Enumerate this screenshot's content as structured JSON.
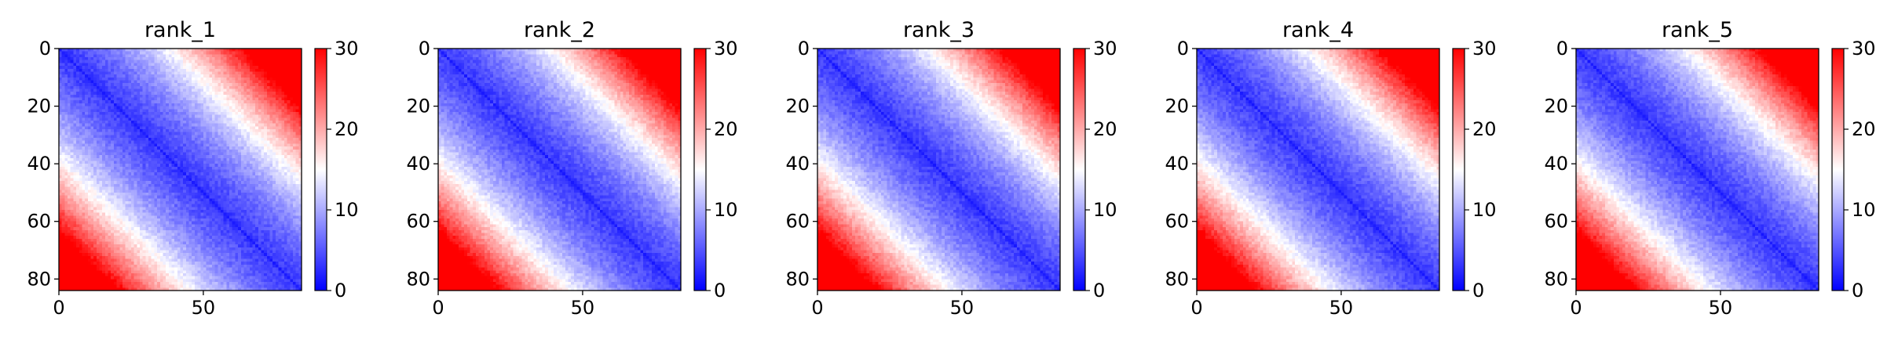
{
  "figure": {
    "colorbar_colors": {
      "low": "#0000ff",
      "mid": "#ffffff",
      "high": "#ff0000"
    }
  },
  "chart_data": [
    {
      "type": "heatmap",
      "title": "rank_1",
      "matrix_size": 84,
      "x_ticks": [
        0,
        50
      ],
      "y_ticks": [
        0,
        20,
        40,
        60,
        80
      ],
      "xlim": [
        0,
        84
      ],
      "ylim": [
        84,
        0
      ],
      "colorbar": {
        "ticks": [
          0,
          10,
          20,
          30
        ],
        "vmin": 0,
        "vmax": 30,
        "colormap": "bwr"
      }
    },
    {
      "type": "heatmap",
      "title": "rank_2",
      "matrix_size": 84,
      "x_ticks": [
        0,
        50
      ],
      "y_ticks": [
        0,
        20,
        40,
        60,
        80
      ],
      "xlim": [
        0,
        84
      ],
      "ylim": [
        84,
        0
      ],
      "colorbar": {
        "ticks": [
          0,
          10,
          20,
          30
        ],
        "vmin": 0,
        "vmax": 30,
        "colormap": "bwr"
      }
    },
    {
      "type": "heatmap",
      "title": "rank_3",
      "matrix_size": 84,
      "x_ticks": [
        0,
        50
      ],
      "y_ticks": [
        0,
        20,
        40,
        60,
        80
      ],
      "xlim": [
        0,
        84
      ],
      "ylim": [
        84,
        0
      ],
      "colorbar": {
        "ticks": [
          0,
          10,
          20,
          30
        ],
        "vmin": 0,
        "vmax": 30,
        "colormap": "bwr"
      }
    },
    {
      "type": "heatmap",
      "title": "rank_4",
      "matrix_size": 84,
      "x_ticks": [
        0,
        50
      ],
      "y_ticks": [
        0,
        20,
        40,
        60,
        80
      ],
      "xlim": [
        0,
        84
      ],
      "ylim": [
        84,
        0
      ],
      "colorbar": {
        "ticks": [
          0,
          10,
          20,
          30
        ],
        "vmin": 0,
        "vmax": 30,
        "colormap": "bwr"
      }
    },
    {
      "type": "heatmap",
      "title": "rank_5",
      "matrix_size": 84,
      "x_ticks": [
        0,
        50
      ],
      "y_ticks": [
        0,
        20,
        40,
        60,
        80
      ],
      "xlim": [
        0,
        84
      ],
      "ylim": [
        84,
        0
      ],
      "colorbar": {
        "ticks": [
          0,
          10,
          20,
          30
        ],
        "vmin": 0,
        "vmax": 30,
        "colormap": "bwr"
      }
    }
  ]
}
